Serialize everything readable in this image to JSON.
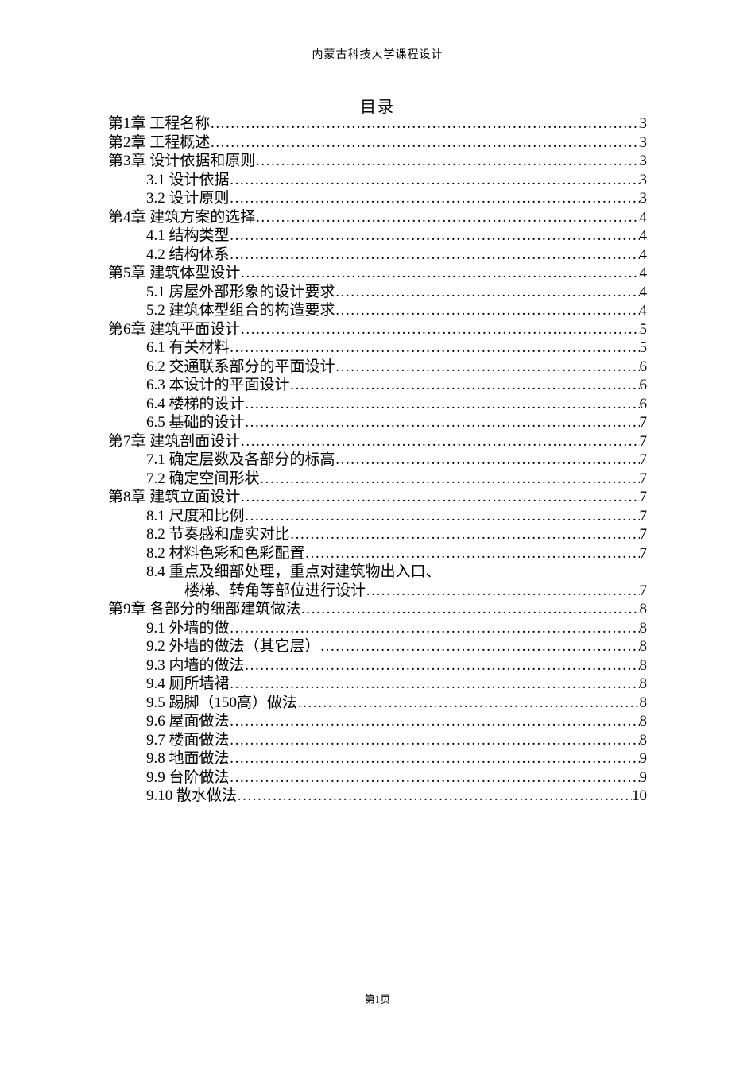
{
  "header": "内蒙古科技大学课程设计",
  "title": "目录",
  "footer": "第1页",
  "toc": [
    {
      "label": "第1章  工程名称",
      "indent": 0,
      "page": "3"
    },
    {
      "label": "第2章  工程概述",
      "indent": 0,
      "page": "3"
    },
    {
      "label": "第3章  设计依据和原则",
      "indent": 0,
      "page": "3"
    },
    {
      "label": "3.1 设计依据   ",
      "indent": 1,
      "page": "3"
    },
    {
      "label": "3.2 设计原则   ",
      "indent": 1,
      "page": "3"
    },
    {
      "label": "第4章  建筑方案的选择",
      "indent": 0,
      "page": "4"
    },
    {
      "label": "4.1 结构类型   ",
      "indent": 1,
      "page": "4"
    },
    {
      "label": "4.2 结构体系   ",
      "indent": 1,
      "page": "4"
    },
    {
      "label": "第5章  建筑体型设计",
      "indent": 0,
      "page": "4"
    },
    {
      "label": "5.1 房屋外部形象的设计要求   ",
      "indent": 1,
      "page": "4"
    },
    {
      "label": "5.2 建筑体型组合的构造要求   ",
      "indent": 1,
      "page": "4"
    },
    {
      "label": "第6章  建筑平面设计",
      "indent": 0,
      "page": "5"
    },
    {
      "label": "6.1 有关材料 ",
      "indent": 1,
      "page": "5"
    },
    {
      "label": "6.2 交通联系部分的平面设计   ",
      "indent": 1,
      "page": "6"
    },
    {
      "label": "6.3 本设计的平面设计",
      "indent": 1,
      "page": "6"
    },
    {
      "label": "6.4 楼梯的设计   ",
      "indent": 1,
      "page": "6"
    },
    {
      "label": "6.5 基础的设计   ",
      "indent": 1,
      "page": "7"
    },
    {
      "label": "第7章  建筑剖面设计   ",
      "indent": 0,
      "page": "7"
    },
    {
      "label": "7.1 确定层数及各部分的标高   ",
      "indent": 1,
      "page": " 7"
    },
    {
      "label": "7.2 确定空间形状",
      "indent": 1,
      "page": "7"
    },
    {
      "label": "第8章  建筑立面设计",
      "indent": 0,
      "page": "7"
    },
    {
      "label": "8.1 尺度和比例",
      "indent": 1,
      "page": "7"
    },
    {
      "label": "8.2 节奏感和虚实对比",
      "indent": 1,
      "page": "7"
    },
    {
      "label": "8.2 材料色彩和色彩配置   ",
      "indent": 1,
      "page": "7"
    },
    {
      "label": "8.4 重点及细部处理，重点对建筑物出入口、",
      "indent": 1,
      "page": null
    },
    {
      "label": "楼梯、转角等部位进行设计",
      "indent": 2,
      "page": "7",
      "cont": true
    },
    {
      "label": "第9章 各部分的细部建筑做法 ",
      "indent": 0,
      "page": "8"
    },
    {
      "label": "9.1 外墙的做   ",
      "indent": 1,
      "page": "8"
    },
    {
      "label": "9.2 外墙的做法（其它层）",
      "indent": 1,
      "page": "8"
    },
    {
      "label": "9.3 内墙的做法",
      "indent": 1,
      "page": "8"
    },
    {
      "label": "9.4 厕所墙裙",
      "indent": 1,
      "page": "8"
    },
    {
      "label": "9.5 踢脚（150高）做法   ",
      "indent": 1,
      "page": "8"
    },
    {
      "label": "9.6 屋面做法",
      "indent": 1,
      "page": "8"
    },
    {
      "label": "9.7 楼面做法",
      "indent": 1,
      "page": "8"
    },
    {
      "label": "9.8 地面做法",
      "indent": 1,
      "page": "9"
    },
    {
      "label": "9.9   台阶做法",
      "indent": 1,
      "page": "9"
    },
    {
      "label": "9.10  散水做法",
      "indent": 1,
      "page": "10"
    }
  ]
}
